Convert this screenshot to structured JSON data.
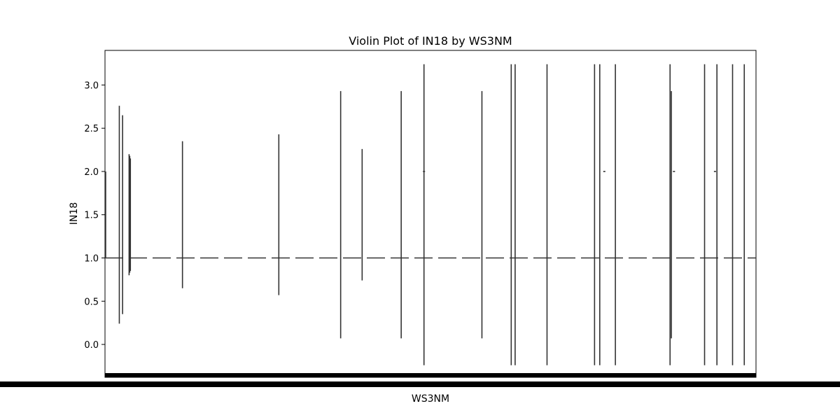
{
  "chart_data": {
    "type": "violin",
    "title": "Violin Plot of IN18 by WS3NM",
    "xlabel": "WS3NM",
    "ylabel": "IN18",
    "ylim": [
      -0.38,
      3.4
    ],
    "yticks": [
      "0.0",
      "0.5",
      "1.0",
      "1.5",
      "2.0",
      "2.5",
      "3.0"
    ],
    "ytick_values": [
      0.0,
      0.5,
      1.0,
      1.5,
      2.0,
      2.5,
      3.0
    ],
    "grid": false,
    "legend": "none",
    "x_tick_labels": "illegible (dense, overlapping category names)",
    "median_line": 1.0,
    "violins": [
      {
        "pos": 0.001,
        "low": 1.0,
        "high": 2.0
      },
      {
        "pos": 0.022,
        "low": 0.24,
        "high": 2.76
      },
      {
        "pos": 0.027,
        "low": 0.35,
        "high": 2.65
      },
      {
        "pos": 0.037,
        "low": 0.8,
        "high": 2.2
      },
      {
        "pos": 0.038,
        "low": 0.83,
        "high": 2.18
      },
      {
        "pos": 0.039,
        "low": 0.85,
        "high": 2.15
      },
      {
        "pos": 0.119,
        "low": 0.65,
        "high": 2.35
      },
      {
        "pos": 0.267,
        "low": 0.57,
        "high": 2.43
      },
      {
        "pos": 0.362,
        "low": 0.07,
        "high": 2.93
      },
      {
        "pos": 0.395,
        "low": 0.74,
        "high": 2.26
      },
      {
        "pos": 0.455,
        "low": 0.07,
        "high": 2.93
      },
      {
        "pos": 0.49,
        "low": 2.0,
        "high": 2.0
      },
      {
        "pos": 0.49,
        "low": -0.24,
        "high": 3.24
      },
      {
        "pos": 0.579,
        "low": 0.07,
        "high": 2.93
      },
      {
        "pos": 0.624,
        "low": -0.24,
        "high": 3.24
      },
      {
        "pos": 0.63,
        "low": -0.24,
        "high": 3.24
      },
      {
        "pos": 0.679,
        "low": -0.24,
        "high": 3.24
      },
      {
        "pos": 0.752,
        "low": -0.24,
        "high": 3.24
      },
      {
        "pos": 0.76,
        "low": -0.24,
        "high": 3.24
      },
      {
        "pos": 0.767,
        "low": 2.0,
        "high": 2.0
      },
      {
        "pos": 0.784,
        "low": -0.24,
        "high": 3.24
      },
      {
        "pos": 0.868,
        "low": -0.24,
        "high": 3.24
      },
      {
        "pos": 0.87,
        "low": 0.07,
        "high": 2.93
      },
      {
        "pos": 0.874,
        "low": 2.0,
        "high": 2.0
      },
      {
        "pos": 0.937,
        "low": 2.0,
        "high": 2.0
      },
      {
        "pos": 0.921,
        "low": -0.24,
        "high": 3.24
      },
      {
        "pos": 0.94,
        "low": -0.24,
        "high": 3.24
      },
      {
        "pos": 0.964,
        "low": -0.24,
        "high": 3.24
      },
      {
        "pos": 0.982,
        "low": -0.24,
        "high": 3.24
      }
    ]
  }
}
